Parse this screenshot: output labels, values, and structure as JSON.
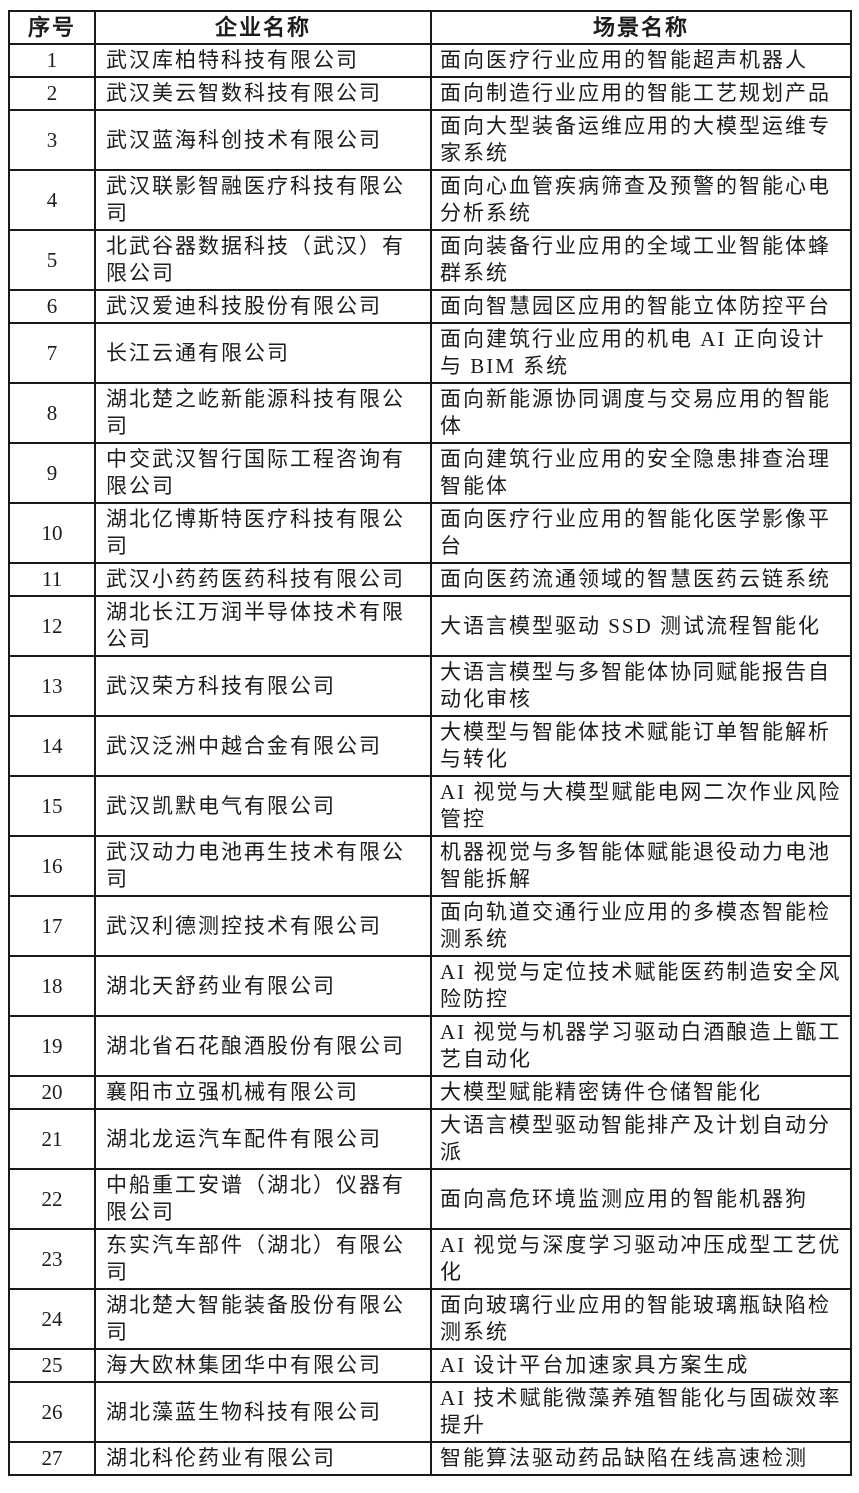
{
  "colors": {
    "background": "#ffffff",
    "border": "#1a1a1a",
    "text": "#1c1c1c"
  },
  "table": {
    "columns": [
      "序号",
      "企业名称",
      "场景名称"
    ],
    "rows": [
      {
        "no": "1",
        "company": "武汉库柏特科技有限公司",
        "scene": "面向医疗行业应用的智能超声机器人"
      },
      {
        "no": "2",
        "company": "武汉美云智数科技有限公司",
        "scene": "面向制造行业应用的智能工艺规划产品"
      },
      {
        "no": "3",
        "company": "武汉蓝海科创技术有限公司",
        "scene": "面向大型装备运维应用的大模型运维专家系统"
      },
      {
        "no": "4",
        "company": "武汉联影智融医疗科技有限公司",
        "scene": "面向心血管疾病筛查及预警的智能心电分析系统"
      },
      {
        "no": "5",
        "company": "北武谷器数据科技（武汉）有限公司",
        "scene": "面向装备行业应用的全域工业智能体蜂群系统"
      },
      {
        "no": "6",
        "company": "武汉爱迪科技股份有限公司",
        "scene": "面向智慧园区应用的智能立体防控平台"
      },
      {
        "no": "7",
        "company": "长江云通有限公司",
        "scene": "面向建筑行业应用的机电 AI 正向设计与 BIM 系统"
      },
      {
        "no": "8",
        "company": "湖北楚之屹新能源科技有限公司",
        "scene": "面向新能源协同调度与交易应用的智能体"
      },
      {
        "no": "9",
        "company": "中交武汉智行国际工程咨询有限公司",
        "scene": "面向建筑行业应用的安全隐患排查治理智能体"
      },
      {
        "no": "10",
        "company": "湖北亿博斯特医疗科技有限公司",
        "scene": "面向医疗行业应用的智能化医学影像平台"
      },
      {
        "no": "11",
        "company": "武汉小药药医药科技有限公司",
        "scene": "面向医药流通领域的智慧医药云链系统"
      },
      {
        "no": "12",
        "company": "湖北长江万润半导体技术有限公司",
        "scene": "大语言模型驱动 SSD 测试流程智能化"
      },
      {
        "no": "13",
        "company": "武汉荣方科技有限公司",
        "scene": "大语言模型与多智能体协同赋能报告自动化审核"
      },
      {
        "no": "14",
        "company": "武汉泛洲中越合金有限公司",
        "scene": "大模型与智能体技术赋能订单智能解析与转化"
      },
      {
        "no": "15",
        "company": "武汉凯默电气有限公司",
        "scene": "AI 视觉与大模型赋能电网二次作业风险管控"
      },
      {
        "no": "16",
        "company": "武汉动力电池再生技术有限公司",
        "scene": "机器视觉与多智能体赋能退役动力电池智能拆解"
      },
      {
        "no": "17",
        "company": "武汉利德测控技术有限公司",
        "scene": "面向轨道交通行业应用的多模态智能检测系统"
      },
      {
        "no": "18",
        "company": "湖北天舒药业有限公司",
        "scene": "AI 视觉与定位技术赋能医药制造安全风险防控"
      },
      {
        "no": "19",
        "company": "湖北省石花酿酒股份有限公司",
        "scene": "AI 视觉与机器学习驱动白酒酿造上甑工艺自动化"
      },
      {
        "no": "20",
        "company": "襄阳市立强机械有限公司",
        "scene": "大模型赋能精密铸件仓储智能化"
      },
      {
        "no": "21",
        "company": "湖北龙运汽车配件有限公司",
        "scene": "大语言模型驱动智能排产及计划自动分派"
      },
      {
        "no": "22",
        "company": "中船重工安谱（湖北）仪器有限公司",
        "scene": "面向高危环境监测应用的智能机器狗"
      },
      {
        "no": "23",
        "company": "东实汽车部件（湖北）有限公司",
        "scene": "AI 视觉与深度学习驱动冲压成型工艺优化"
      },
      {
        "no": "24",
        "company": "湖北楚大智能装备股份有限公司",
        "scene": "面向玻璃行业应用的智能玻璃瓶缺陷检测系统"
      },
      {
        "no": "25",
        "company": "海大欧林集团华中有限公司",
        "scene": "AI 设计平台加速家具方案生成"
      },
      {
        "no": "26",
        "company": "湖北藻蓝生物科技有限公司",
        "scene": "AI 技术赋能微藻养殖智能化与固碳效率提升"
      },
      {
        "no": "27",
        "company": "湖北科伦药业有限公司",
        "scene": "智能算法驱动药品缺陷在线高速检测"
      }
    ]
  }
}
